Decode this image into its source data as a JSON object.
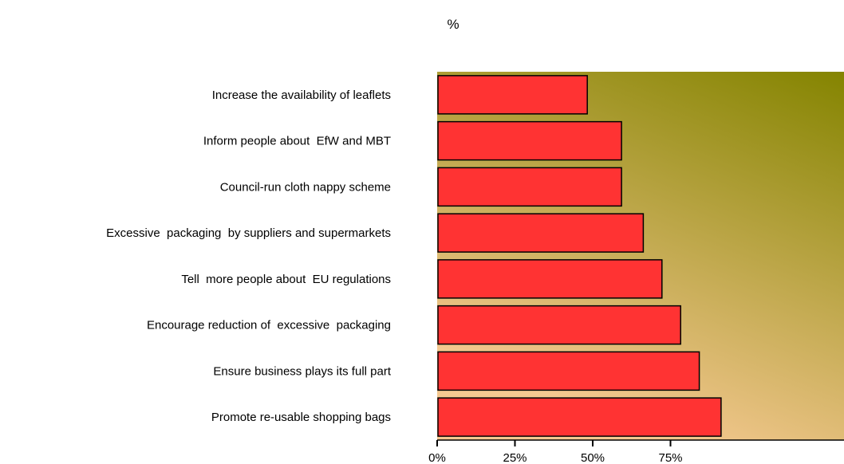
{
  "chart_data": {
    "type": "bar",
    "orientation": "horizontal",
    "title": "%",
    "xlabel": "",
    "ylabel": "",
    "categories": [
      "Increase the availability of leaflets",
      "Inform people about  EfW and MBT",
      "Council-run cloth nappy scheme",
      "Excessive  packaging  by suppliers and supermarkets",
      "Tell  more people about  EU regulations",
      "Encourage reduction of  excessive  packaging",
      "Ensure business plays its full part",
      "Promote re-usable shopping bags"
    ],
    "values": [
      48,
      59,
      59,
      66,
      72,
      78,
      84,
      91
    ],
    "xlim": [
      0,
      92
    ],
    "x_ticks": [
      0,
      25,
      50,
      75
    ],
    "x_tick_labels": [
      "0%",
      "25%",
      "50%",
      "75%"
    ],
    "grid": false,
    "legend": "none",
    "colors": {
      "bar_fill": "#ff3333",
      "bar_stroke": "#000000",
      "plot_gradient_top": "#848400",
      "plot_gradient_bottom": "#f4c890"
    }
  }
}
